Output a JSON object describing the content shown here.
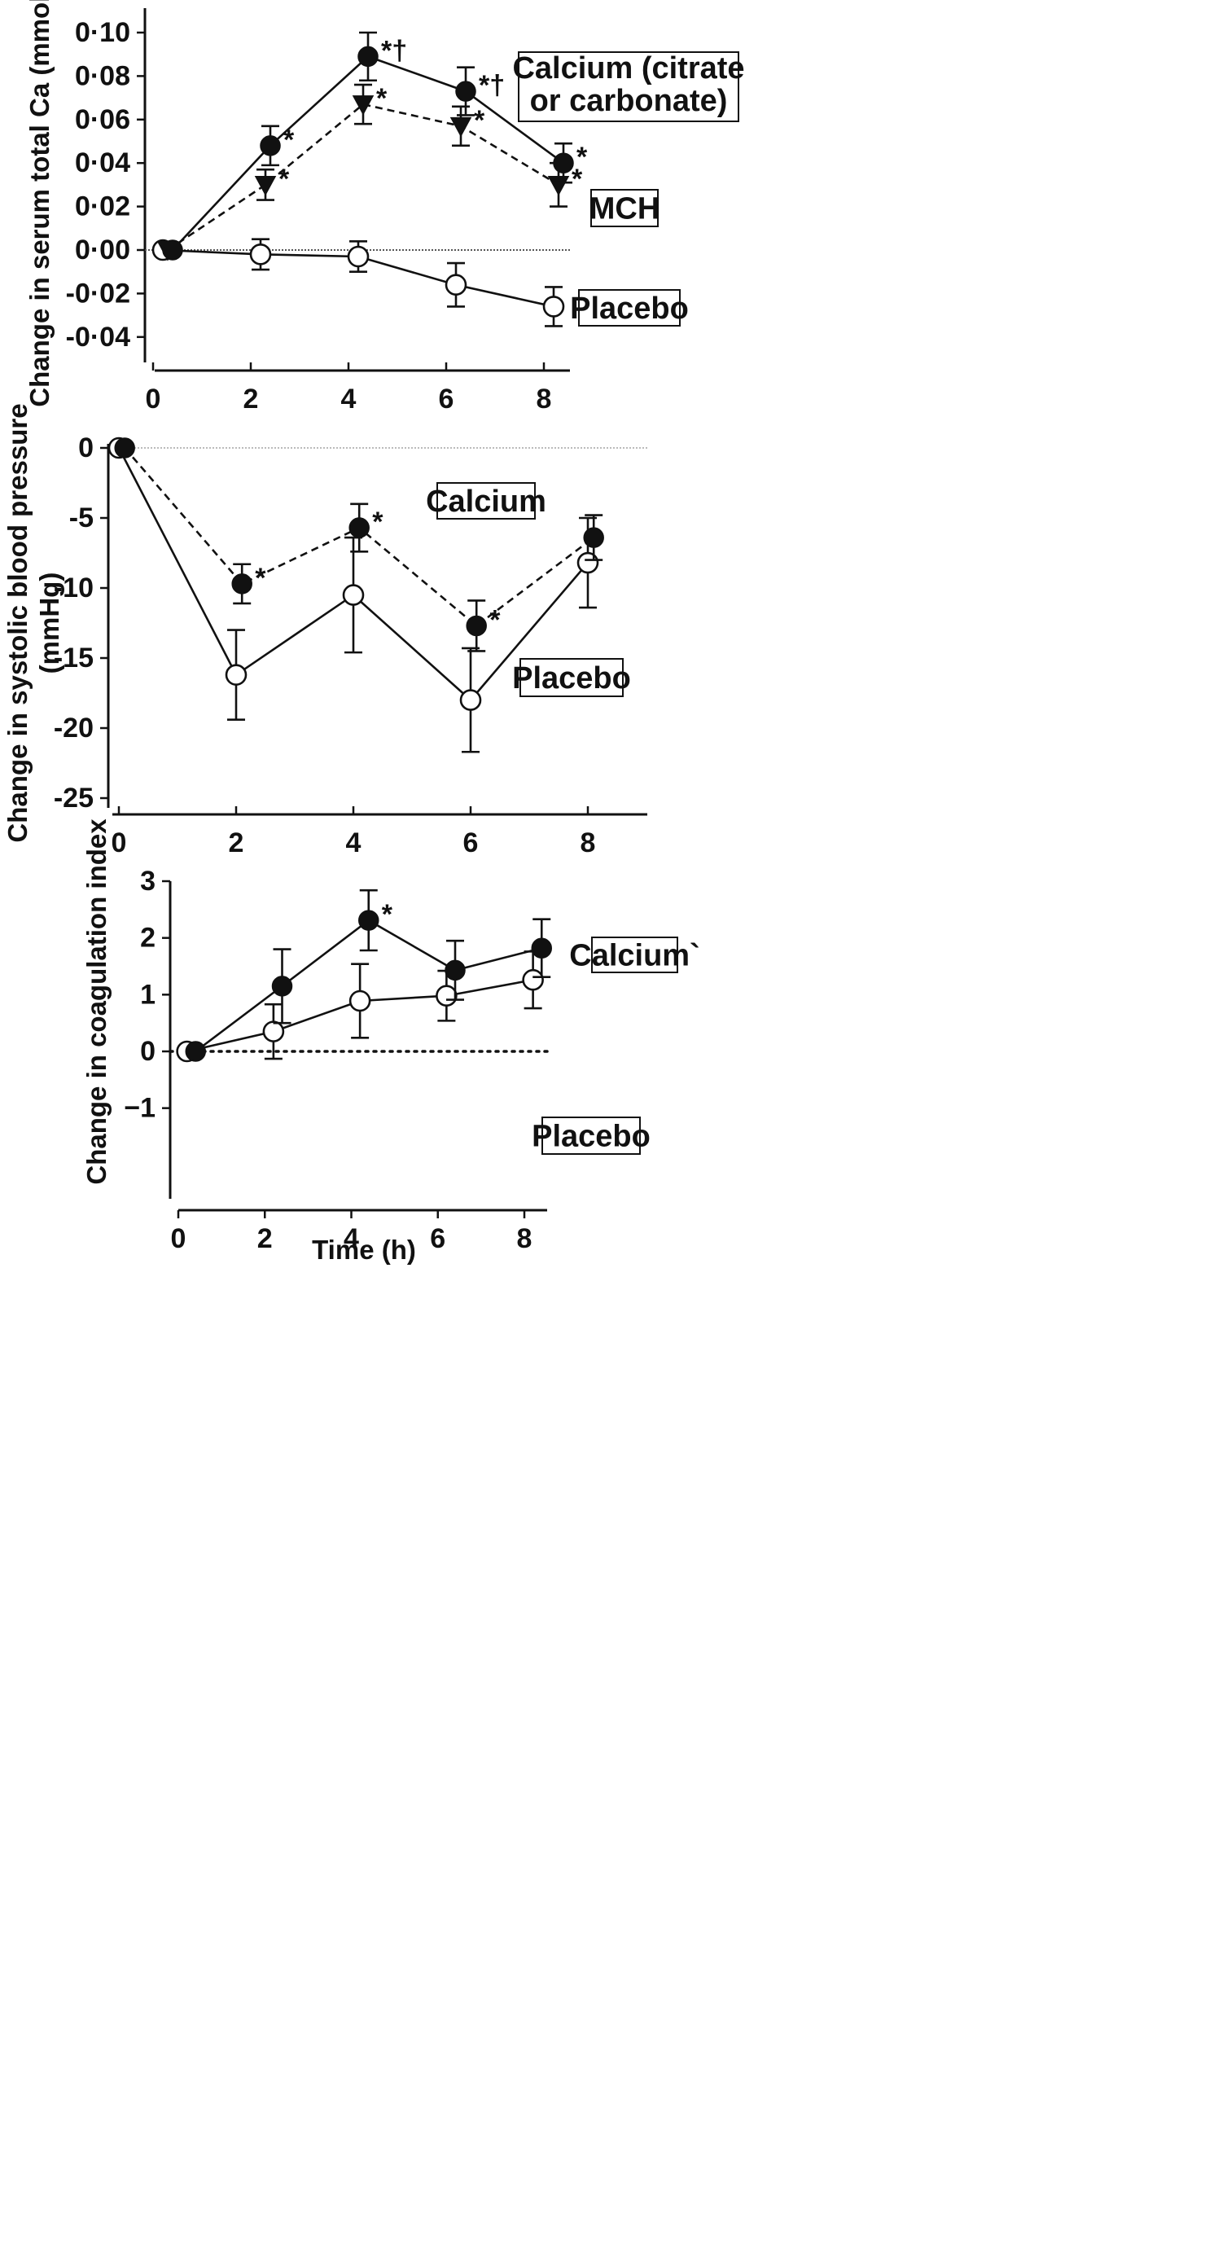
{
  "chart_data": [
    {
      "type": "line",
      "ylabel": "Change in serum total Ca (mmol/l)",
      "xlabel": "",
      "ylim": [
        -0.05,
        0.1
      ],
      "xlim": [
        -0.3,
        8.8
      ],
      "yticks": [
        {
          "value": 0.1,
          "label": "0·10"
        },
        {
          "value": 0.08,
          "label": "0·08"
        },
        {
          "value": 0.06,
          "label": "0·06"
        },
        {
          "value": 0.04,
          "label": "0·04"
        },
        {
          "value": 0.02,
          "label": "0·02"
        },
        {
          "value": 0.0,
          "label": "0·00"
        },
        {
          "value": -0.02,
          "label": "-0·02"
        },
        {
          "value": -0.04,
          "label": "-0·04"
        }
      ],
      "xticks": [
        {
          "value": 0,
          "label": "0"
        },
        {
          "value": 2,
          "label": "2"
        },
        {
          "value": 4,
          "label": "4"
        },
        {
          "value": 6,
          "label": "6"
        },
        {
          "value": 8,
          "label": "8"
        }
      ],
      "zero_line": true,
      "series": [
        {
          "name": "Calcium (citrate or carbonate)",
          "marker": "filled-circle",
          "dashed": false,
          "x": [
            0.4,
            2.4,
            4.4,
            6.4,
            8.4
          ],
          "y": [
            0.0,
            0.048,
            0.089,
            0.073,
            0.04
          ],
          "err": [
            0,
            0.009,
            0.011,
            0.011,
            0.009
          ],
          "annotations": [
            "",
            "*",
            "*†",
            "*†",
            "*"
          ]
        },
        {
          "name": "MCH",
          "marker": "filled-triangle",
          "dashed": true,
          "x": [
            0.3,
            2.3,
            4.3,
            6.3,
            8.3
          ],
          "y": [
            0.0,
            0.03,
            0.067,
            0.057,
            0.03
          ],
          "err": [
            0,
            0.007,
            0.009,
            0.009,
            0.01
          ],
          "annotations": [
            "",
            "*",
            "*",
            "*",
            "*"
          ]
        },
        {
          "name": "Placebo",
          "marker": "open-circle",
          "dashed": false,
          "x": [
            0.2,
            2.2,
            4.2,
            6.2,
            8.2
          ],
          "y": [
            0.0,
            -0.002,
            -0.003,
            -0.016,
            -0.026
          ],
          "err": [
            0,
            0.007,
            0.007,
            0.01,
            0.009
          ],
          "annotations": [
            "",
            "",
            "",
            "",
            ""
          ]
        }
      ],
      "legend": [
        {
          "series": 0,
          "lines": [
            "Calcium (citrate",
            "or carbonate)"
          ]
        },
        {
          "series": 1,
          "lines": [
            "MCH"
          ]
        },
        {
          "series": 2,
          "lines": [
            "Placebo"
          ]
        }
      ]
    },
    {
      "type": "line",
      "ylabel": "Change in systolic blood pressure (mmHg)",
      "ylabel_lines": [
        "Change in systolic blood pressure",
        "(mmHg)"
      ],
      "xlabel": "",
      "ylim": [
        -26,
        0.5
      ],
      "xlim": [
        -0.1,
        9.2
      ],
      "yticks": [
        {
          "value": 0,
          "label": "0"
        },
        {
          "value": -5,
          "label": "-5"
        },
        {
          "value": -10,
          "label": "-10"
        },
        {
          "value": -15,
          "label": "-15"
        },
        {
          "value": -20,
          "label": "-20"
        },
        {
          "value": -25,
          "label": "-25"
        }
      ],
      "xticks": [
        {
          "value": 0,
          "label": "0"
        },
        {
          "value": 2,
          "label": "2"
        },
        {
          "value": 4,
          "label": "4"
        },
        {
          "value": 6,
          "label": "6"
        },
        {
          "value": 8,
          "label": "8"
        }
      ],
      "zero_line": true,
      "series": [
        {
          "name": "Calcium",
          "marker": "filled-circle",
          "dashed": true,
          "x": [
            0.1,
            2.1,
            4.1,
            6.1,
            8.1
          ],
          "y": [
            0,
            -9.7,
            -5.7,
            -12.7,
            -6.4
          ],
          "err": [
            0,
            1.4,
            1.7,
            1.8,
            1.6
          ],
          "annotations": [
            "",
            "*",
            "*",
            "*",
            ""
          ]
        },
        {
          "name": "Placebo",
          "marker": "open-circle",
          "dashed": false,
          "x": [
            0,
            2,
            4,
            6,
            8
          ],
          "y": [
            0,
            -16.2,
            -10.5,
            -18,
            -8.2
          ],
          "err": [
            0,
            3.2,
            4.1,
            3.7,
            3.2
          ],
          "annotations": [
            "",
            "",
            "",
            "",
            ""
          ]
        }
      ],
      "legend": [
        {
          "series": 0,
          "lines": [
            "Calcium"
          ]
        },
        {
          "series": 1,
          "lines": [
            "Placebo"
          ]
        }
      ]
    },
    {
      "type": "line",
      "ylabel": "Change in coagulation index",
      "xlabel": "Time (h)",
      "ylim": [
        -1.1,
        3
      ],
      "xlim": [
        -0.3,
        8.6
      ],
      "yticks": [
        {
          "value": 3,
          "label": "3"
        },
        {
          "value": 2,
          "label": "2"
        },
        {
          "value": 1,
          "label": "1"
        },
        {
          "value": 0,
          "label": "0"
        },
        {
          "value": -1,
          "label": "−1"
        }
      ],
      "xticks": [
        {
          "value": 0,
          "label": "0"
        },
        {
          "value": 2,
          "label": "2"
        },
        {
          "value": 4,
          "label": "4"
        },
        {
          "value": 6,
          "label": "6"
        },
        {
          "value": 8,
          "label": "8"
        }
      ],
      "zero_line": true,
      "series": [
        {
          "name": "Calcium`",
          "marker": "filled-circle",
          "dashed": false,
          "x": [
            0.4,
            2.4,
            4.4,
            6.4,
            8.4
          ],
          "y": [
            0,
            1.15,
            2.31,
            1.43,
            1.82
          ],
          "err": [
            0,
            0.65,
            0.53,
            0.52,
            0.51
          ],
          "annotations": [
            "",
            "",
            "*",
            "",
            ""
          ]
        },
        {
          "name": "Placebo",
          "marker": "open-circle",
          "dashed": false,
          "x": [
            0.2,
            2.2,
            4.2,
            6.2,
            8.2
          ],
          "y": [
            0,
            0.35,
            0.89,
            0.98,
            1.26
          ],
          "err": [
            0,
            0.48,
            0.65,
            0.44,
            0.5
          ],
          "annotations": [
            "",
            "",
            "",
            "",
            ""
          ]
        }
      ],
      "legend": [
        {
          "series": 0,
          "lines": [
            "Calcium`"
          ]
        },
        {
          "series": 1,
          "lines": [
            "Placebo"
          ]
        }
      ]
    }
  ]
}
